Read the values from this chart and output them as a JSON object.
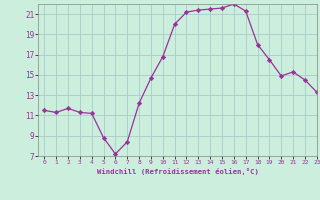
{
  "x": [
    0,
    1,
    2,
    3,
    4,
    5,
    6,
    7,
    8,
    9,
    10,
    11,
    12,
    13,
    14,
    15,
    16,
    17,
    18,
    19,
    20,
    21,
    22,
    23
  ],
  "y": [
    11.5,
    11.3,
    11.7,
    11.3,
    11.2,
    8.8,
    7.2,
    8.4,
    12.2,
    14.7,
    16.8,
    20.0,
    21.2,
    21.4,
    21.5,
    21.6,
    22.0,
    21.3,
    18.0,
    16.5,
    14.9,
    15.3,
    14.5,
    13.3
  ],
  "xlabel": "Windchill (Refroidissement éolien,°C)",
  "ylim": [
    7,
    22
  ],
  "xlim": [
    -0.5,
    23
  ],
  "yticks": [
    7,
    9,
    11,
    13,
    15,
    17,
    19,
    21
  ],
  "xticks": [
    0,
    1,
    2,
    3,
    4,
    5,
    6,
    7,
    8,
    9,
    10,
    11,
    12,
    13,
    14,
    15,
    16,
    17,
    18,
    19,
    20,
    21,
    22,
    23
  ],
  "line_color": "#993399",
  "marker": "D",
  "bg_color": "#cceedd",
  "grid_color": "#aacccc"
}
